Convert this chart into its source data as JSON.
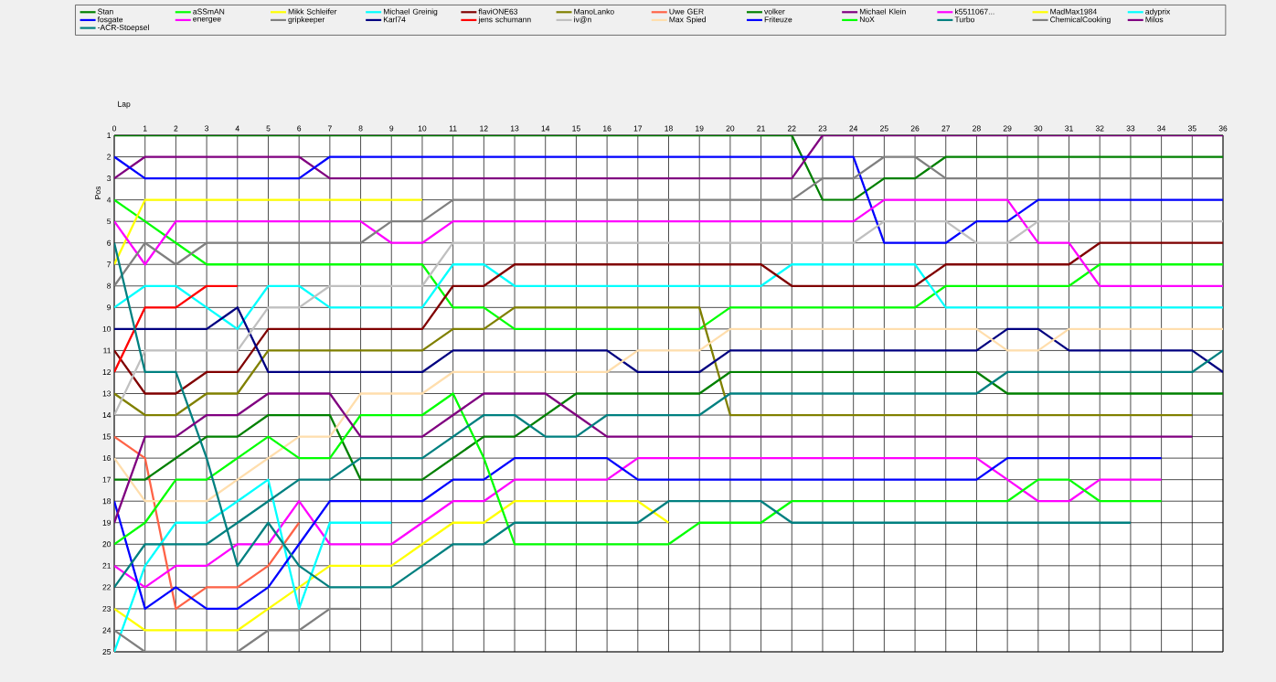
{
  "chart_data": {
    "type": "line",
    "xlabel": "Lap",
    "ylabel": "Pos",
    "x": [
      0,
      1,
      2,
      3,
      4,
      5,
      6,
      7,
      8,
      9,
      10,
      11,
      12,
      13,
      14,
      15,
      16,
      17,
      18,
      19,
      20,
      21,
      22,
      23,
      24,
      25,
      26,
      27,
      28,
      29,
      30,
      31,
      32,
      33,
      34,
      35,
      36
    ],
    "xlim": [
      0,
      36
    ],
    "ylim": [
      25,
      1
    ],
    "xticks": [
      0,
      1,
      2,
      3,
      4,
      5,
      6,
      7,
      8,
      9,
      10,
      11,
      12,
      13,
      14,
      15,
      16,
      17,
      18,
      19,
      20,
      21,
      22,
      23,
      24,
      25,
      26,
      27,
      28,
      29,
      30,
      31,
      32,
      33,
      34,
      35,
      36
    ],
    "yticks": [
      1,
      2,
      3,
      4,
      5,
      6,
      7,
      8,
      9,
      10,
      11,
      12,
      13,
      14,
      15,
      16,
      17,
      18,
      19,
      20,
      21,
      22,
      23,
      24,
      25
    ],
    "grid": true,
    "legend": "top",
    "marker": "none",
    "line_style": "solid",
    "series": [
      {
        "name": "Stan",
        "color": "#008000",
        "values": [
          1,
          1,
          1,
          1,
          1,
          1,
          1,
          1,
          1,
          1,
          1,
          1,
          1,
          1,
          1,
          1,
          1,
          1,
          1,
          1,
          1,
          1,
          1,
          4,
          4,
          3,
          3,
          2,
          2,
          2,
          2,
          2,
          2,
          2,
          2,
          2,
          2
        ]
      },
      {
        "name": "aSSmAN",
        "color": "#00ff00",
        "values": [
          4,
          5,
          6,
          7,
          7,
          7,
          7,
          7,
          7,
          7,
          7,
          9,
          9,
          10,
          10,
          10,
          10,
          10,
          10,
          10,
          9,
          9,
          9,
          9,
          9,
          9,
          9,
          8,
          8,
          8,
          8,
          8,
          7,
          7,
          7,
          7,
          7
        ]
      },
      {
        "name": "Mikk Schleifer",
        "color": "#ffff00",
        "values": [
          7,
          4,
          4,
          4,
          4,
          4,
          4,
          4,
          4,
          4,
          4,
          null,
          null,
          null,
          null,
          null,
          null,
          null,
          null,
          null,
          null,
          null,
          null,
          null,
          null,
          null,
          null,
          null,
          null,
          null,
          null,
          null,
          null,
          null,
          null,
          null,
          null
        ]
      },
      {
        "name": "Michael Greinig",
        "color": "#00ffff",
        "values": [
          9,
          8,
          8,
          9,
          10,
          8,
          8,
          9,
          9,
          9,
          9,
          7,
          7,
          8,
          8,
          8,
          8,
          8,
          8,
          8,
          8,
          8,
          7,
          7,
          7,
          7,
          7,
          9,
          9,
          9,
          9,
          9,
          9,
          9,
          9,
          9,
          9
        ]
      },
      {
        "name": "flaviONE63",
        "color": "#800000",
        "values": [
          11,
          13,
          13,
          12,
          12,
          10,
          10,
          10,
          10,
          10,
          10,
          8,
          8,
          7,
          7,
          7,
          7,
          7,
          7,
          7,
          7,
          7,
          8,
          8,
          8,
          8,
          8,
          7,
          7,
          7,
          7,
          7,
          6,
          6,
          6,
          6,
          6
        ]
      },
      {
        "name": "ManoLanko",
        "color": "#808000",
        "values": [
          13,
          14,
          14,
          13,
          13,
          11,
          11,
          11,
          11,
          11,
          11,
          10,
          10,
          9,
          9,
          9,
          9,
          9,
          9,
          9,
          14,
          14,
          14,
          14,
          14,
          14,
          14,
          14,
          14,
          14,
          14,
          14,
          14,
          14,
          14,
          14,
          null
        ]
      },
      {
        "name": "Uwe GER",
        "color": "#ff6347",
        "values": [
          15,
          16,
          23,
          22,
          22,
          21,
          19,
          null,
          null,
          null,
          null,
          null,
          null,
          null,
          null,
          null,
          null,
          null,
          null,
          null,
          null,
          null,
          null,
          null,
          null,
          null,
          null,
          null,
          null,
          null,
          null,
          null,
          null,
          null,
          null,
          null,
          null
        ]
      },
      {
        "name": "volker",
        "color": "#008000",
        "values": [
          17,
          17,
          16,
          15,
          15,
          14,
          14,
          14,
          17,
          17,
          17,
          16,
          15,
          15,
          14,
          13,
          13,
          13,
          13,
          13,
          12,
          12,
          12,
          12,
          12,
          12,
          12,
          12,
          12,
          13,
          13,
          13,
          13,
          13,
          13,
          13,
          13
        ]
      },
      {
        "name": "Michael Klein",
        "color": "#800080",
        "values": [
          3,
          2,
          2,
          2,
          2,
          2,
          2,
          3,
          3,
          3,
          3,
          3,
          3,
          3,
          3,
          3,
          3,
          3,
          3,
          3,
          3,
          3,
          3,
          1,
          1,
          1,
          1,
          1,
          1,
          1,
          1,
          1,
          1,
          1,
          1,
          1,
          1
        ]
      },
      {
        "name": "k5511067...",
        "color": "#ff00ff",
        "values": [
          21,
          22,
          21,
          21,
          20,
          20,
          18,
          20,
          20,
          20,
          19,
          18,
          18,
          17,
          17,
          17,
          17,
          16,
          16,
          16,
          16,
          16,
          16,
          16,
          16,
          16,
          16,
          16,
          16,
          17,
          18,
          18,
          17,
          17,
          17,
          null,
          null
        ]
      },
      {
        "name": "MadMax1984",
        "color": "#ffff00",
        "values": [
          23,
          24,
          24,
          24,
          24,
          23,
          22,
          21,
          21,
          21,
          20,
          19,
          19,
          18,
          18,
          18,
          18,
          18,
          19,
          null,
          null,
          null,
          null,
          null,
          null,
          null,
          null,
          null,
          null,
          null,
          null,
          null,
          null,
          null,
          null,
          null,
          null
        ]
      },
      {
        "name": "adyprix",
        "color": "#00ffff",
        "values": [
          25,
          21,
          19,
          19,
          18,
          17,
          23,
          19,
          19,
          19,
          null,
          null,
          null,
          null,
          null,
          null,
          null,
          null,
          null,
          null,
          null,
          null,
          null,
          null,
          null,
          null,
          null,
          null,
          null,
          null,
          null,
          null,
          null,
          null,
          null,
          null,
          null
        ]
      },
      {
        "name": "fosgate",
        "color": "#0000ff",
        "values": [
          2,
          3,
          3,
          3,
          3,
          3,
          3,
          2,
          2,
          2,
          2,
          2,
          2,
          2,
          2,
          2,
          2,
          2,
          2,
          2,
          2,
          2,
          2,
          2,
          2,
          6,
          6,
          6,
          5,
          5,
          4,
          4,
          4,
          4,
          4,
          4,
          4
        ]
      },
      {
        "name": "energee",
        "color": "#ff00ff",
        "values": [
          5,
          7,
          5,
          5,
          5,
          5,
          5,
          5,
          5,
          6,
          6,
          5,
          5,
          5,
          5,
          5,
          5,
          5,
          5,
          5,
          5,
          5,
          5,
          5,
          5,
          4,
          4,
          4,
          4,
          4,
          6,
          6,
          8,
          8,
          8,
          8,
          8
        ]
      },
      {
        "name": "gripkeeper",
        "color": "#808080",
        "values": [
          8,
          6,
          7,
          6,
          6,
          6,
          6,
          6,
          6,
          5,
          5,
          4,
          4,
          4,
          4,
          4,
          4,
          4,
          4,
          4,
          4,
          4,
          4,
          3,
          3,
          2,
          2,
          3,
          3,
          3,
          3,
          3,
          3,
          3,
          3,
          3,
          3
        ]
      },
      {
        "name": "Karl74",
        "color": "#000080",
        "values": [
          10,
          10,
          10,
          10,
          9,
          12,
          12,
          12,
          12,
          12,
          12,
          11,
          11,
          11,
          11,
          11,
          11,
          12,
          12,
          12,
          11,
          11,
          11,
          11,
          11,
          11,
          11,
          11,
          11,
          10,
          10,
          11,
          11,
          11,
          11,
          11,
          12
        ]
      },
      {
        "name": "jens  schumann",
        "color": "#ff0000",
        "values": [
          12,
          9,
          9,
          8,
          8,
          null,
          null,
          null,
          null,
          null,
          null,
          null,
          null,
          null,
          null,
          null,
          null,
          null,
          null,
          null,
          null,
          null,
          null,
          null,
          null,
          null,
          null,
          null,
          null,
          null,
          null,
          null,
          null,
          null,
          null,
          null,
          null
        ]
      },
      {
        "name": "iv@n",
        "color": "#c0c0c0",
        "values": [
          14,
          11,
          11,
          11,
          11,
          9,
          9,
          8,
          8,
          8,
          8,
          6,
          6,
          6,
          6,
          6,
          6,
          6,
          6,
          6,
          6,
          6,
          6,
          6,
          6,
          5,
          5,
          5,
          6,
          6,
          5,
          5,
          5,
          5,
          5,
          5,
          5
        ]
      },
      {
        "name": "Max Spied",
        "color": "#ffdead",
        "values": [
          16,
          18,
          18,
          18,
          17,
          16,
          15,
          15,
          13,
          13,
          13,
          12,
          12,
          12,
          12,
          12,
          12,
          11,
          11,
          11,
          10,
          10,
          10,
          10,
          10,
          10,
          10,
          10,
          10,
          11,
          11,
          10,
          10,
          10,
          10,
          10,
          10
        ]
      },
      {
        "name": "Friteuze",
        "color": "#0000ff",
        "values": [
          18,
          23,
          22,
          23,
          23,
          22,
          20,
          18,
          18,
          18,
          18,
          17,
          17,
          16,
          16,
          16,
          16,
          17,
          17,
          17,
          17,
          17,
          17,
          17,
          17,
          17,
          17,
          17,
          17,
          16,
          16,
          16,
          16,
          16,
          16,
          null,
          null
        ]
      },
      {
        "name": "NoX",
        "color": "#00ff00",
        "values": [
          20,
          19,
          17,
          17,
          16,
          15,
          16,
          16,
          14,
          14,
          14,
          13,
          16,
          20,
          20,
          20,
          20,
          20,
          20,
          19,
          19,
          19,
          18,
          18,
          18,
          18,
          18,
          18,
          18,
          18,
          17,
          17,
          18,
          18,
          18,
          null,
          null
        ]
      },
      {
        "name": "Turbo",
        "color": "#008080",
        "values": [
          6,
          12,
          12,
          16,
          21,
          19,
          21,
          22,
          22,
          22,
          21,
          20,
          20,
          19,
          19,
          19,
          19,
          19,
          18,
          18,
          18,
          18,
          19,
          19,
          19,
          19,
          19,
          19,
          19,
          19,
          19,
          19,
          19,
          19,
          null,
          null,
          null
        ]
      },
      {
        "name": "ChemicalCooking",
        "color": "#808080",
        "values": [
          24,
          25,
          25,
          25,
          25,
          24,
          24,
          23,
          23,
          null,
          null,
          null,
          null,
          null,
          null,
          null,
          null,
          null,
          null,
          null,
          null,
          null,
          null,
          null,
          null,
          null,
          null,
          null,
          null,
          null,
          null,
          null,
          null,
          null,
          null,
          null,
          null
        ]
      },
      {
        "name": "Milos",
        "color": "#800080",
        "values": [
          19,
          15,
          15,
          14,
          14,
          13,
          13,
          13,
          15,
          15,
          15,
          14,
          13,
          13,
          13,
          14,
          15,
          15,
          15,
          15,
          15,
          15,
          15,
          15,
          15,
          15,
          15,
          15,
          15,
          15,
          15,
          15,
          15,
          15,
          15,
          15,
          null
        ]
      },
      {
        "name": "-ACR-Stoepsel",
        "color": "#008080",
        "values": [
          22,
          20,
          20,
          20,
          19,
          18,
          17,
          17,
          16,
          16,
          16,
          15,
          14,
          14,
          15,
          15,
          14,
          14,
          14,
          14,
          13,
          13,
          13,
          13,
          13,
          13,
          13,
          13,
          13,
          12,
          12,
          12,
          12,
          12,
          12,
          12,
          11
        ]
      }
    ]
  }
}
